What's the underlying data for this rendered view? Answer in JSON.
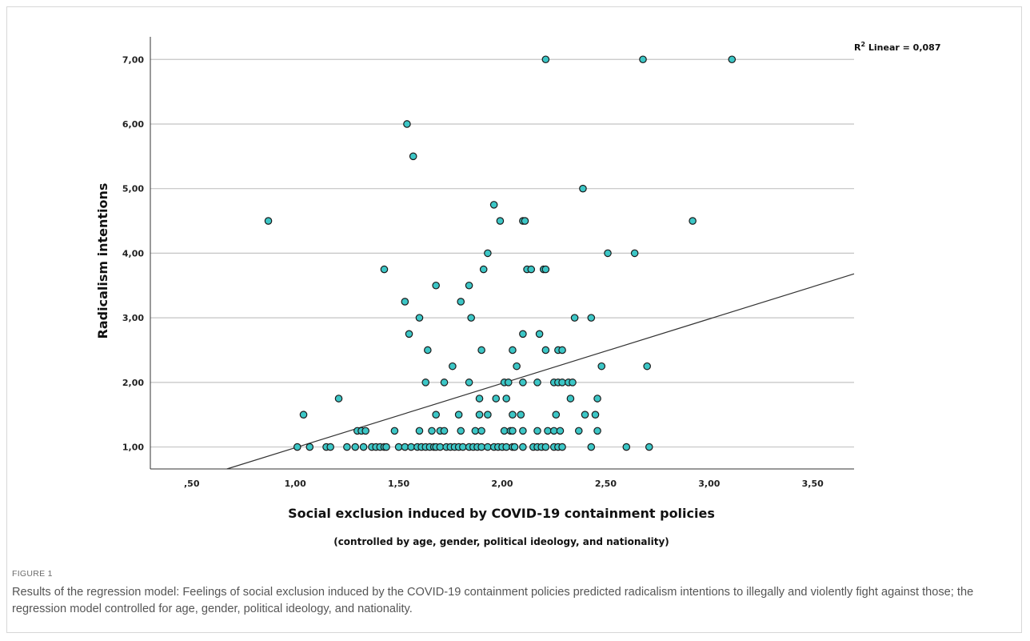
{
  "figure": {
    "label": "FIGURE 1",
    "caption": "Results of the regression model: Feelings of social exclusion induced by the COVID-19 containment policies predicted radicalism intentions to illegally and violently fight against those; the regression model controlled for age, gender, political ideology, and nationality."
  },
  "chart_data": {
    "type": "scatter",
    "xlabel": "Social exclusion induced by COVID-19 containment policies",
    "xsublabel": "(controlled by age, gender, political ideology, and nationality)",
    "ylabel": "Radicalism intentions",
    "r2_prefix": "R",
    "r2_sup": "2",
    "r2_text": " Linear = 0,087",
    "xlim": [
      0.3,
      3.7
    ],
    "ylim": [
      0.66,
      7.35
    ],
    "x_ticks": [
      0.5,
      1.0,
      1.5,
      2.0,
      2.5,
      3.0,
      3.5
    ],
    "x_tick_labels": [
      ",50",
      "1,00",
      "1,50",
      "2,00",
      "2,50",
      "3,00",
      "3,50"
    ],
    "y_ticks": [
      1,
      2,
      3,
      4,
      5,
      6,
      7
    ],
    "y_tick_labels": [
      "1,00",
      "2,00",
      "3,00",
      "4,00",
      "5,00",
      "6,00",
      "7,00"
    ],
    "grid": "horizontal",
    "marker_color": "#3cc6c6",
    "marker_edge": "#1a1a1a",
    "fit_line": {
      "x": [
        0.67,
        3.7
      ],
      "y": [
        0.66,
        3.68
      ]
    },
    "points": [
      [
        2.21,
        7.0
      ],
      [
        2.68,
        7.0
      ],
      [
        3.11,
        7.0
      ],
      [
        1.54,
        6.0
      ],
      [
        1.57,
        5.5
      ],
      [
        2.39,
        5.0
      ],
      [
        1.96,
        4.75
      ],
      [
        0.87,
        4.5
      ],
      [
        1.99,
        4.5
      ],
      [
        2.1,
        4.5
      ],
      [
        2.11,
        4.5
      ],
      [
        2.92,
        4.5
      ],
      [
        1.93,
        4.0
      ],
      [
        2.51,
        4.0
      ],
      [
        2.64,
        4.0
      ],
      [
        1.43,
        3.75
      ],
      [
        1.91,
        3.75
      ],
      [
        2.12,
        3.75
      ],
      [
        2.14,
        3.75
      ],
      [
        2.2,
        3.75
      ],
      [
        2.21,
        3.75
      ],
      [
        1.68,
        3.5
      ],
      [
        1.84,
        3.5
      ],
      [
        1.53,
        3.25
      ],
      [
        1.8,
        3.25
      ],
      [
        1.6,
        3.0
      ],
      [
        1.85,
        3.0
      ],
      [
        2.35,
        3.0
      ],
      [
        2.43,
        3.0
      ],
      [
        1.55,
        2.75
      ],
      [
        2.1,
        2.75
      ],
      [
        2.18,
        2.75
      ],
      [
        1.64,
        2.5
      ],
      [
        1.9,
        2.5
      ],
      [
        2.05,
        2.5
      ],
      [
        2.21,
        2.5
      ],
      [
        2.27,
        2.5
      ],
      [
        2.29,
        2.5
      ],
      [
        1.76,
        2.25
      ],
      [
        2.07,
        2.25
      ],
      [
        2.48,
        2.25
      ],
      [
        2.7,
        2.25
      ],
      [
        1.63,
        2.0
      ],
      [
        1.72,
        2.0
      ],
      [
        1.84,
        2.0
      ],
      [
        2.01,
        2.0
      ],
      [
        2.03,
        2.0
      ],
      [
        2.1,
        2.0
      ],
      [
        2.17,
        2.0
      ],
      [
        2.25,
        2.0
      ],
      [
        2.27,
        2.0
      ],
      [
        2.29,
        2.0
      ],
      [
        2.32,
        2.0
      ],
      [
        2.34,
        2.0
      ],
      [
        1.21,
        1.75
      ],
      [
        1.89,
        1.75
      ],
      [
        1.97,
        1.75
      ],
      [
        2.02,
        1.75
      ],
      [
        2.33,
        1.75
      ],
      [
        2.46,
        1.75
      ],
      [
        1.04,
        1.5
      ],
      [
        1.68,
        1.5
      ],
      [
        1.79,
        1.5
      ],
      [
        1.89,
        1.5
      ],
      [
        1.93,
        1.5
      ],
      [
        2.05,
        1.5
      ],
      [
        2.09,
        1.5
      ],
      [
        2.26,
        1.5
      ],
      [
        2.4,
        1.5
      ],
      [
        2.45,
        1.5
      ],
      [
        1.3,
        1.25
      ],
      [
        1.32,
        1.25
      ],
      [
        1.34,
        1.25
      ],
      [
        1.48,
        1.25
      ],
      [
        1.6,
        1.25
      ],
      [
        1.66,
        1.25
      ],
      [
        1.7,
        1.25
      ],
      [
        1.72,
        1.25
      ],
      [
        1.8,
        1.25
      ],
      [
        1.87,
        1.25
      ],
      [
        1.9,
        1.25
      ],
      [
        2.01,
        1.25
      ],
      [
        2.04,
        1.25
      ],
      [
        2.05,
        1.25
      ],
      [
        2.1,
        1.25
      ],
      [
        2.17,
        1.25
      ],
      [
        2.22,
        1.25
      ],
      [
        2.25,
        1.25
      ],
      [
        2.28,
        1.25
      ],
      [
        2.37,
        1.25
      ],
      [
        2.46,
        1.25
      ],
      [
        1.01,
        1.0
      ],
      [
        1.07,
        1.0
      ],
      [
        1.15,
        1.0
      ],
      [
        1.17,
        1.0
      ],
      [
        1.25,
        1.0
      ],
      [
        1.29,
        1.0
      ],
      [
        1.33,
        1.0
      ],
      [
        1.37,
        1.0
      ],
      [
        1.39,
        1.0
      ],
      [
        1.41,
        1.0
      ],
      [
        1.43,
        1.0
      ],
      [
        1.44,
        1.0
      ],
      [
        1.5,
        1.0
      ],
      [
        1.53,
        1.0
      ],
      [
        1.56,
        1.0
      ],
      [
        1.59,
        1.0
      ],
      [
        1.61,
        1.0
      ],
      [
        1.63,
        1.0
      ],
      [
        1.65,
        1.0
      ],
      [
        1.67,
        1.0
      ],
      [
        1.68,
        1.0
      ],
      [
        1.7,
        1.0
      ],
      [
        1.73,
        1.0
      ],
      [
        1.75,
        1.0
      ],
      [
        1.77,
        1.0
      ],
      [
        1.79,
        1.0
      ],
      [
        1.81,
        1.0
      ],
      [
        1.84,
        1.0
      ],
      [
        1.86,
        1.0
      ],
      [
        1.88,
        1.0
      ],
      [
        1.9,
        1.0
      ],
      [
        1.93,
        1.0
      ],
      [
        1.96,
        1.0
      ],
      [
        1.98,
        1.0
      ],
      [
        2.0,
        1.0
      ],
      [
        2.02,
        1.0
      ],
      [
        2.05,
        1.0
      ],
      [
        2.06,
        1.0
      ],
      [
        2.1,
        1.0
      ],
      [
        2.15,
        1.0
      ],
      [
        2.17,
        1.0
      ],
      [
        2.19,
        1.0
      ],
      [
        2.21,
        1.0
      ],
      [
        2.25,
        1.0
      ],
      [
        2.27,
        1.0
      ],
      [
        2.29,
        1.0
      ],
      [
        2.43,
        1.0
      ],
      [
        2.6,
        1.0
      ],
      [
        2.71,
        1.0
      ]
    ]
  }
}
